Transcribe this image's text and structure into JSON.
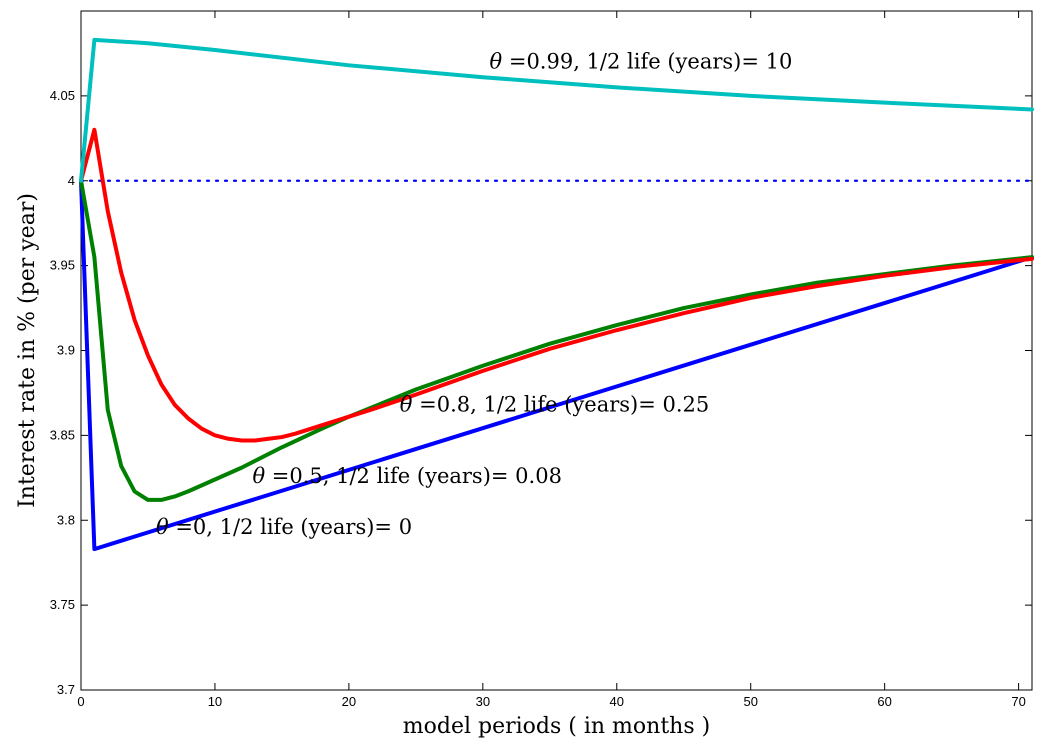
{
  "chart_data": {
    "type": "line",
    "title": "",
    "xlabel": "model periods ( in months )",
    "ylabel": "Interest rate in % (per year)",
    "xlim": [
      0,
      71
    ],
    "ylim": [
      3.7,
      4.1
    ],
    "xticks": [
      0,
      10,
      20,
      30,
      40,
      50,
      60,
      70
    ],
    "yticks": [
      3.7,
      3.75,
      3.8,
      3.85,
      3.9,
      3.95,
      4,
      4.05
    ],
    "ytick_labels": [
      "3.7",
      "3.75",
      "3.8",
      "3.85",
      "3.9",
      "3.95",
      "4",
      "4.05"
    ],
    "grid": false,
    "legend": "none",
    "reference_line": {
      "y": 4.0,
      "style": "dotted",
      "color": "#0000ff"
    },
    "series": [
      {
        "color": "#0000ff",
        "x": [
          0,
          1,
          71
        ],
        "y": [
          4.0,
          3.783,
          3.955
        ]
      },
      {
        "color": "#008000",
        "x": [
          0,
          1,
          2,
          3,
          4,
          5,
          6,
          7,
          8,
          10,
          12,
          15,
          18,
          20,
          25,
          30,
          35,
          40,
          45,
          50,
          55,
          60,
          65,
          71
        ],
        "y": [
          4.0,
          3.955,
          3.865,
          3.832,
          3.817,
          3.812,
          3.812,
          3.814,
          3.817,
          3.824,
          3.831,
          3.843,
          3.854,
          3.861,
          3.877,
          3.891,
          3.904,
          3.915,
          3.925,
          3.933,
          3.94,
          3.945,
          3.95,
          3.955
        ]
      },
      {
        "color": "#ff0000",
        "x": [
          0,
          1,
          2,
          3,
          4,
          5,
          6,
          7,
          8,
          9,
          10,
          11,
          12,
          13,
          14,
          15,
          16,
          18,
          20,
          22,
          25,
          30,
          35,
          40,
          45,
          50,
          55,
          60,
          65,
          71
        ],
        "y": [
          4.0,
          4.03,
          3.982,
          3.946,
          3.918,
          3.897,
          3.88,
          3.868,
          3.86,
          3.854,
          3.85,
          3.848,
          3.847,
          3.847,
          3.848,
          3.849,
          3.851,
          3.856,
          3.861,
          3.866,
          3.874,
          3.888,
          3.901,
          3.912,
          3.922,
          3.931,
          3.938,
          3.944,
          3.949,
          3.954
        ]
      },
      {
        "color": "#00bfbf",
        "x": [
          0,
          1,
          5,
          10,
          20,
          30,
          40,
          50,
          60,
          71
        ],
        "y": [
          4.0,
          4.083,
          4.081,
          4.077,
          4.068,
          4.061,
          4.055,
          4.05,
          4.046,
          4.042
        ]
      }
    ],
    "annotations": [
      {
        "theta_symbol": "θ",
        "text": " =0.99, 1/2 life (years)= 10",
        "x": 30.5,
        "y": 4.066
      },
      {
        "theta_symbol": "θ",
        "text": " =0.8, 1/2 life (years)= 0.25",
        "x": 23.8,
        "y": 3.864
      },
      {
        "theta_symbol": "θ",
        "text": " =0.5, 1/2 life (years)= 0.08",
        "x": 12.8,
        "y": 3.822
      },
      {
        "theta_symbol": "θ",
        "text": " =0, 1/2 life (years)= 0",
        "x": 5.6,
        "y": 3.792
      }
    ]
  }
}
